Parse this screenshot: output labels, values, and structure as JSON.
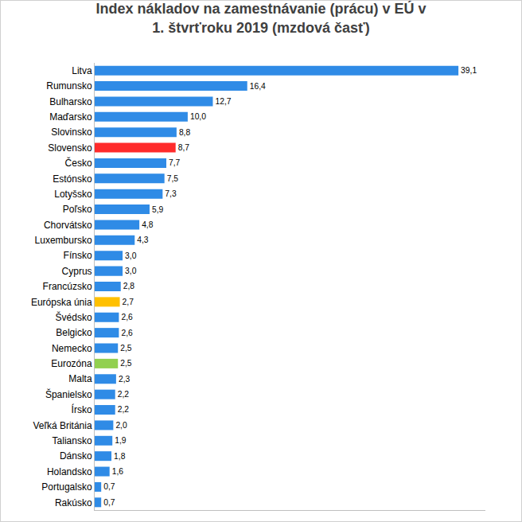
{
  "chart_data": {
    "type": "bar",
    "orientation": "horizontal",
    "title": "Index nákladov na zamestnávanie (prácu) v EÚ v\n1. štvrťroku 2019 (mzdová časť)",
    "categories": [
      "Litva",
      "Rumunsko",
      "Bulharsko",
      "Maďarsko",
      "Slovinsko",
      "Slovensko",
      "Česko",
      "Estónsko",
      "Lotyšsko",
      "Poľsko",
      "Chorvátsko",
      "Luxembursko",
      "Fínsko",
      "Cyprus",
      "Francúzsko",
      "Európska únia",
      "Švédsko",
      "Belgicko",
      "Nemecko",
      "Eurozóna",
      "Malta",
      "Španielsko",
      "Írsko",
      "Veľká Británia",
      "Taliansko",
      "Dánsko",
      "Holandsko",
      "Portugalsko",
      "Rakúsko"
    ],
    "values": [
      39.1,
      16.4,
      12.7,
      10.0,
      8.8,
      8.7,
      7.7,
      7.5,
      7.3,
      5.9,
      4.8,
      4.3,
      3.0,
      3.0,
      2.8,
      2.7,
      2.6,
      2.6,
      2.5,
      2.5,
      2.3,
      2.2,
      2.2,
      2.0,
      1.9,
      1.8,
      1.6,
      0.7,
      0.7
    ],
    "value_labels": [
      "39,1",
      "16,4",
      "12,7",
      "10,0",
      "8,8",
      "8,7",
      "7,7",
      "7,5",
      "7,3",
      "5,9",
      "4,8",
      "4,3",
      "3,0",
      "3,0",
      "2,8",
      "2,7",
      "2,6",
      "2,6",
      "2,5",
      "2,5",
      "2,3",
      "2,2",
      "2,2",
      "2,0",
      "1,9",
      "1,8",
      "1,6",
      "0,7",
      "0,7"
    ],
    "colors": [
      "#2f8be6",
      "#2f8be6",
      "#2f8be6",
      "#2f8be6",
      "#2f8be6",
      "#ff2b2b",
      "#2f8be6",
      "#2f8be6",
      "#2f8be6",
      "#2f8be6",
      "#2f8be6",
      "#2f8be6",
      "#2f8be6",
      "#2f8be6",
      "#2f8be6",
      "#ffc000",
      "#2f8be6",
      "#2f8be6",
      "#2f8be6",
      "#92d050",
      "#2f8be6",
      "#2f8be6",
      "#2f8be6",
      "#2f8be6",
      "#2f8be6",
      "#2f8be6",
      "#2f8be6",
      "#2f8be6",
      "#2f8be6"
    ],
    "xlim": [
      0,
      42
    ],
    "xticks": [],
    "grid": false,
    "data_labels": true,
    "tick_labels": "y"
  }
}
